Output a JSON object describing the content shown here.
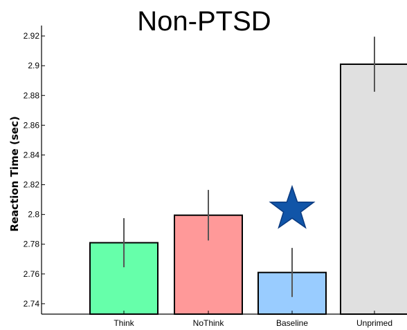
{
  "chart_data": {
    "type": "bar",
    "title": "Non-PTSD",
    "xlabel": "",
    "ylabel": "Reaction Time (sec)",
    "ylim": [
      2.733,
      2.927
    ],
    "yticks": [
      2.74,
      2.76,
      2.78,
      2.8,
      2.82,
      2.84,
      2.86,
      2.88,
      2.9,
      2.92
    ],
    "ytick_labels": [
      "2.74",
      "2.76",
      "2.78",
      "2.8",
      "2.82",
      "2.84",
      "2.86",
      "2.88",
      "2.9",
      "2.92"
    ],
    "categories": [
      "Think",
      "NoThink",
      "Baseline",
      "Unprimed"
    ],
    "values": [
      2.781,
      2.7995,
      2.761,
      2.901
    ],
    "error": [
      0.0165,
      0.017,
      0.0165,
      0.0185
    ],
    "colors": [
      "#66ffaa",
      "#ff9999",
      "#99ccff",
      "#e0e0e0"
    ],
    "grid": false,
    "legend": "none",
    "annotations": [
      {
        "type": "star",
        "category": "Baseline",
        "y": 2.8035,
        "color": "#1155a8"
      }
    ]
  }
}
